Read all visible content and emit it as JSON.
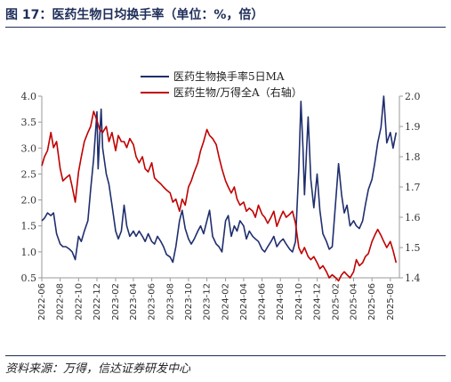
{
  "title": "图 17：医药生物日均换手率（单位：%，倍）",
  "source": "资料来源：万得，信达证券研发中心",
  "colors": {
    "navy": "#1f2e6e",
    "red": "#c00000",
    "axis": "#999999"
  },
  "chart_data": {
    "type": "line",
    "title": "图 17：医药生物日均换手率（单位：%，倍）",
    "x_ticks": [
      "2022-06",
      "2022-08",
      "2022-10",
      "2022-12",
      "2023-02",
      "2023-04",
      "2023-06",
      "2023-08",
      "2023-10",
      "2023-12",
      "2024-02",
      "2024-04",
      "2024-06",
      "2024-08",
      "2024-10",
      "2024-12",
      "2025-02",
      "2025-04",
      "2025-06",
      "2025-08"
    ],
    "y_left": {
      "ylim": [
        0.5,
        4.0
      ],
      "ticks": [
        "0.5",
        "1.0",
        "1.5",
        "2.0",
        "2.5",
        "3.0",
        "3.5",
        "4.0"
      ]
    },
    "y_right": {
      "ylim": [
        1.4,
        2.0
      ],
      "ticks": [
        "1.4",
        "1.5",
        "1.6",
        "1.7",
        "1.8",
        "1.9",
        "2.0"
      ]
    },
    "legend_position": "top-center",
    "series": [
      {
        "name": "医药生物换手率5日MA",
        "axis": "left",
        "color": "#1f2e6e",
        "points": [
          [
            "2022-06-01",
            1.6
          ],
          [
            "2022-06-10",
            1.65
          ],
          [
            "2022-06-20",
            1.75
          ],
          [
            "2022-07-01",
            1.7
          ],
          [
            "2022-07-10",
            1.75
          ],
          [
            "2022-07-20",
            1.35
          ],
          [
            "2022-08-01",
            1.15
          ],
          [
            "2022-08-10",
            1.1
          ],
          [
            "2022-08-20",
            1.1
          ],
          [
            "2022-09-01",
            1.05
          ],
          [
            "2022-09-10",
            1.0
          ],
          [
            "2022-09-20",
            0.85
          ],
          [
            "2022-10-01",
            1.3
          ],
          [
            "2022-10-10",
            1.2
          ],
          [
            "2022-10-20",
            1.4
          ],
          [
            "2022-11-01",
            1.6
          ],
          [
            "2022-11-10",
            2.2
          ],
          [
            "2022-11-20",
            2.8
          ],
          [
            "2022-12-01",
            3.7
          ],
          [
            "2022-12-05",
            2.6
          ],
          [
            "2022-12-10",
            3.2
          ],
          [
            "2022-12-15",
            3.75
          ],
          [
            "2022-12-20",
            3.0
          ],
          [
            "2023-01-01",
            2.5
          ],
          [
            "2023-01-10",
            2.3
          ],
          [
            "2023-01-20",
            1.9
          ],
          [
            "2023-02-01",
            1.4
          ],
          [
            "2023-02-10",
            1.25
          ],
          [
            "2023-02-20",
            1.4
          ],
          [
            "2023-03-01",
            1.9
          ],
          [
            "2023-03-10",
            1.5
          ],
          [
            "2023-03-20",
            1.3
          ],
          [
            "2023-04-01",
            1.4
          ],
          [
            "2023-04-10",
            1.3
          ],
          [
            "2023-04-20",
            1.4
          ],
          [
            "2023-05-01",
            1.3
          ],
          [
            "2023-05-10",
            1.2
          ],
          [
            "2023-05-20",
            1.35
          ],
          [
            "2023-06-01",
            1.2
          ],
          [
            "2023-06-10",
            1.15
          ],
          [
            "2023-06-20",
            1.3
          ],
          [
            "2023-07-01",
            1.2
          ],
          [
            "2023-07-10",
            1.1
          ],
          [
            "2023-07-20",
            0.95
          ],
          [
            "2023-08-01",
            0.9
          ],
          [
            "2023-08-10",
            0.8
          ],
          [
            "2023-08-20",
            1.1
          ],
          [
            "2023-09-01",
            1.6
          ],
          [
            "2023-09-10",
            1.8
          ],
          [
            "2023-09-20",
            1.45
          ],
          [
            "2023-10-01",
            1.25
          ],
          [
            "2023-10-10",
            1.15
          ],
          [
            "2023-10-20",
            1.25
          ],
          [
            "2023-11-01",
            1.4
          ],
          [
            "2023-11-10",
            1.5
          ],
          [
            "2023-11-20",
            1.35
          ],
          [
            "2023-12-01",
            1.6
          ],
          [
            "2023-12-10",
            1.8
          ],
          [
            "2023-12-20",
            1.3
          ],
          [
            "2024-01-01",
            1.15
          ],
          [
            "2024-01-10",
            1.1
          ],
          [
            "2024-01-20",
            1.0
          ],
          [
            "2024-02-01",
            1.6
          ],
          [
            "2024-02-10",
            1.7
          ],
          [
            "2024-02-20",
            1.3
          ],
          [
            "2024-03-01",
            1.5
          ],
          [
            "2024-03-10",
            1.4
          ],
          [
            "2024-03-20",
            1.6
          ],
          [
            "2024-04-01",
            1.5
          ],
          [
            "2024-04-10",
            1.25
          ],
          [
            "2024-04-20",
            1.4
          ],
          [
            "2024-05-01",
            1.3
          ],
          [
            "2024-05-10",
            1.25
          ],
          [
            "2024-05-20",
            1.2
          ],
          [
            "2024-06-01",
            1.05
          ],
          [
            "2024-06-10",
            1.0
          ],
          [
            "2024-06-20",
            1.1
          ],
          [
            "2024-07-01",
            1.2
          ],
          [
            "2024-07-10",
            1.3
          ],
          [
            "2024-07-20",
            1.1
          ],
          [
            "2024-08-01",
            1.2
          ],
          [
            "2024-08-10",
            1.25
          ],
          [
            "2024-08-20",
            1.15
          ],
          [
            "2024-09-01",
            1.05
          ],
          [
            "2024-09-10",
            1.0
          ],
          [
            "2024-09-20",
            1.2
          ],
          [
            "2024-10-01",
            2.6
          ],
          [
            "2024-10-08",
            3.9
          ],
          [
            "2024-10-15",
            3.0
          ],
          [
            "2024-10-20",
            2.1
          ],
          [
            "2024-11-01",
            3.6
          ],
          [
            "2024-11-10",
            2.4
          ],
          [
            "2024-11-20",
            1.85
          ],
          [
            "2024-12-01",
            2.5
          ],
          [
            "2024-12-10",
            1.8
          ],
          [
            "2024-12-20",
            1.35
          ],
          [
            "2025-01-01",
            1.2
          ],
          [
            "2025-01-10",
            1.05
          ],
          [
            "2025-01-20",
            1.1
          ],
          [
            "2025-02-01",
            2.0
          ],
          [
            "2025-02-10",
            2.7
          ],
          [
            "2025-02-20",
            2.1
          ],
          [
            "2025-03-01",
            1.75
          ],
          [
            "2025-03-10",
            1.9
          ],
          [
            "2025-03-20",
            1.5
          ],
          [
            "2025-04-01",
            1.6
          ],
          [
            "2025-04-10",
            1.5
          ],
          [
            "2025-04-20",
            1.45
          ],
          [
            "2025-05-01",
            1.6
          ],
          [
            "2025-05-10",
            1.9
          ],
          [
            "2025-05-20",
            2.2
          ],
          [
            "2025-06-01",
            2.4
          ],
          [
            "2025-06-10",
            2.7
          ],
          [
            "2025-06-20",
            3.1
          ],
          [
            "2025-07-01",
            3.4
          ],
          [
            "2025-07-10",
            4.0
          ],
          [
            "2025-07-20",
            3.1
          ],
          [
            "2025-08-01",
            3.3
          ],
          [
            "2025-08-10",
            3.0
          ],
          [
            "2025-08-20",
            3.3
          ]
        ]
      },
      {
        "name": "医药生物/万得全A（右轴）",
        "axis": "right",
        "color": "#c00000",
        "points": [
          [
            "2022-06-01",
            1.77
          ],
          [
            "2022-06-10",
            1.8
          ],
          [
            "2022-06-20",
            1.82
          ],
          [
            "2022-07-01",
            1.88
          ],
          [
            "2022-07-10",
            1.83
          ],
          [
            "2022-07-20",
            1.85
          ],
          [
            "2022-08-01",
            1.76
          ],
          [
            "2022-08-10",
            1.72
          ],
          [
            "2022-08-20",
            1.73
          ],
          [
            "2022-09-01",
            1.74
          ],
          [
            "2022-09-10",
            1.7
          ],
          [
            "2022-09-20",
            1.65
          ],
          [
            "2022-10-01",
            1.75
          ],
          [
            "2022-10-10",
            1.8
          ],
          [
            "2022-10-20",
            1.85
          ],
          [
            "2022-11-01",
            1.88
          ],
          [
            "2022-11-10",
            1.9
          ],
          [
            "2022-11-20",
            1.95
          ],
          [
            "2022-12-01",
            1.92
          ],
          [
            "2022-12-10",
            1.89
          ],
          [
            "2022-12-20",
            1.88
          ],
          [
            "2023-01-01",
            1.9
          ],
          [
            "2023-01-10",
            1.85
          ],
          [
            "2023-01-20",
            1.88
          ],
          [
            "2023-02-01",
            1.82
          ],
          [
            "2023-02-10",
            1.87
          ],
          [
            "2023-02-20",
            1.85
          ],
          [
            "2023-03-01",
            1.85
          ],
          [
            "2023-03-10",
            1.83
          ],
          [
            "2023-03-20",
            1.86
          ],
          [
            "2023-04-01",
            1.84
          ],
          [
            "2023-04-10",
            1.8
          ],
          [
            "2023-04-20",
            1.78
          ],
          [
            "2023-05-01",
            1.8
          ],
          [
            "2023-05-10",
            1.76
          ],
          [
            "2023-05-20",
            1.75
          ],
          [
            "2023-06-01",
            1.78
          ],
          [
            "2023-06-10",
            1.73
          ],
          [
            "2023-06-20",
            1.72
          ],
          [
            "2023-07-01",
            1.71
          ],
          [
            "2023-07-10",
            1.7
          ],
          [
            "2023-07-20",
            1.69
          ],
          [
            "2023-08-01",
            1.68
          ],
          [
            "2023-08-10",
            1.65
          ],
          [
            "2023-08-20",
            1.66
          ],
          [
            "2023-09-01",
            1.62
          ],
          [
            "2023-09-10",
            1.66
          ],
          [
            "2023-09-20",
            1.64
          ],
          [
            "2023-10-01",
            1.7
          ],
          [
            "2023-10-10",
            1.72
          ],
          [
            "2023-10-20",
            1.75
          ],
          [
            "2023-11-01",
            1.78
          ],
          [
            "2023-11-10",
            1.82
          ],
          [
            "2023-11-20",
            1.85
          ],
          [
            "2023-12-01",
            1.89
          ],
          [
            "2023-12-10",
            1.87
          ],
          [
            "2023-12-20",
            1.86
          ],
          [
            "2024-01-01",
            1.84
          ],
          [
            "2024-01-10",
            1.8
          ],
          [
            "2024-01-20",
            1.76
          ],
          [
            "2024-02-01",
            1.72
          ],
          [
            "2024-02-10",
            1.7
          ],
          [
            "2024-02-20",
            1.68
          ],
          [
            "2024-03-01",
            1.7
          ],
          [
            "2024-03-10",
            1.66
          ],
          [
            "2024-03-20",
            1.64
          ],
          [
            "2024-04-01",
            1.65
          ],
          [
            "2024-04-10",
            1.62
          ],
          [
            "2024-04-20",
            1.63
          ],
          [
            "2024-05-01",
            1.62
          ],
          [
            "2024-05-10",
            1.6
          ],
          [
            "2024-05-20",
            1.64
          ],
          [
            "2024-06-01",
            1.61
          ],
          [
            "2024-06-10",
            1.6
          ],
          [
            "2024-06-20",
            1.58
          ],
          [
            "2024-07-01",
            1.6
          ],
          [
            "2024-07-10",
            1.62
          ],
          [
            "2024-07-20",
            1.57
          ],
          [
            "2024-08-01",
            1.6
          ],
          [
            "2024-08-10",
            1.62
          ],
          [
            "2024-08-20",
            1.6
          ],
          [
            "2024-09-01",
            1.61
          ],
          [
            "2024-09-10",
            1.62
          ],
          [
            "2024-09-20",
            1.58
          ],
          [
            "2024-10-01",
            1.5
          ],
          [
            "2024-10-10",
            1.48
          ],
          [
            "2024-10-20",
            1.5
          ],
          [
            "2024-11-01",
            1.47
          ],
          [
            "2024-11-10",
            1.46
          ],
          [
            "2024-11-20",
            1.47
          ],
          [
            "2024-12-01",
            1.45
          ],
          [
            "2024-12-10",
            1.43
          ],
          [
            "2024-12-20",
            1.44
          ],
          [
            "2025-01-01",
            1.42
          ],
          [
            "2025-01-10",
            1.4
          ],
          [
            "2025-01-20",
            1.41
          ],
          [
            "2025-02-01",
            1.4
          ],
          [
            "2025-02-10",
            1.39
          ],
          [
            "2025-02-20",
            1.41
          ],
          [
            "2025-03-01",
            1.42
          ],
          [
            "2025-03-10",
            1.41
          ],
          [
            "2025-03-20",
            1.4
          ],
          [
            "2025-04-01",
            1.42
          ],
          [
            "2025-04-10",
            1.46
          ],
          [
            "2025-04-20",
            1.44
          ],
          [
            "2025-05-01",
            1.45
          ],
          [
            "2025-05-10",
            1.47
          ],
          [
            "2025-05-20",
            1.48
          ],
          [
            "2025-06-01",
            1.52
          ],
          [
            "2025-06-10",
            1.54
          ],
          [
            "2025-06-20",
            1.56
          ],
          [
            "2025-07-01",
            1.54
          ],
          [
            "2025-07-10",
            1.52
          ],
          [
            "2025-07-20",
            1.5
          ],
          [
            "2025-08-01",
            1.52
          ],
          [
            "2025-08-10",
            1.49
          ],
          [
            "2025-08-20",
            1.45
          ]
        ]
      }
    ]
  }
}
